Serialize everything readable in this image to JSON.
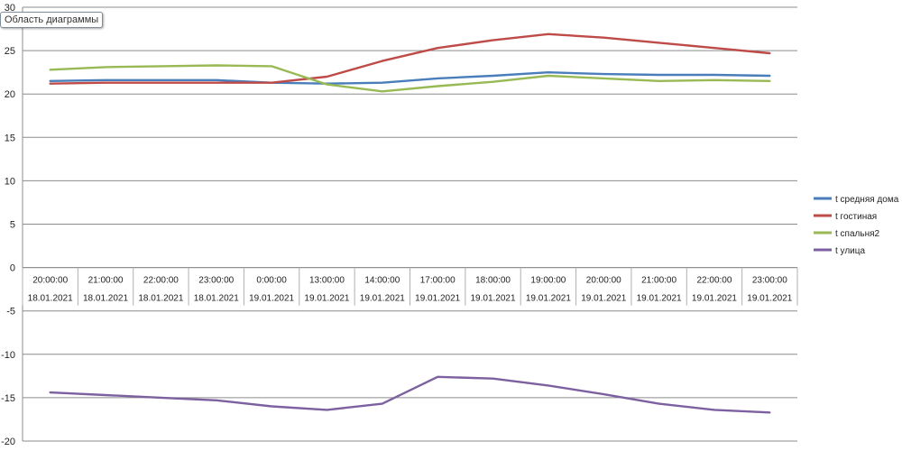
{
  "chart_data": {
    "type": "line",
    "title": "",
    "xlabel": "",
    "ylabel": "",
    "ylim": [
      -20,
      30
    ],
    "y_ticks": [
      30,
      25,
      20,
      15,
      10,
      5,
      0,
      -5,
      -10,
      -15,
      -20
    ],
    "grid": true,
    "legend_position": "right",
    "categories": [
      {
        "time": "20:00:00",
        "date": "18.01.2021"
      },
      {
        "time": "21:00:00",
        "date": "18.01.2021"
      },
      {
        "time": "22:00:00",
        "date": "18.01.2021"
      },
      {
        "time": "23:00:00",
        "date": "18.01.2021"
      },
      {
        "time": "0:00:00",
        "date": "19.01.2021"
      },
      {
        "time": "13:00:00",
        "date": "19.01.2021"
      },
      {
        "time": "14:00:00",
        "date": "19.01.2021"
      },
      {
        "time": "17:00:00",
        "date": "19.01.2021"
      },
      {
        "time": "18:00:00",
        "date": "19.01.2021"
      },
      {
        "time": "19:00:00",
        "date": "19.01.2021"
      },
      {
        "time": "20:00:00",
        "date": "19.01.2021"
      },
      {
        "time": "21:00:00",
        "date": "19.01.2021"
      },
      {
        "time": "22:00:00",
        "date": "19.01.2021"
      },
      {
        "time": "23:00:00",
        "date": "19.01.2021"
      }
    ],
    "series": [
      {
        "name": "t средняя  дома",
        "color": "#4a7ebb",
        "values": [
          21.5,
          21.6,
          21.6,
          21.6,
          21.3,
          21.2,
          21.3,
          21.8,
          22.1,
          22.5,
          22.3,
          22.2,
          22.2,
          22.1
        ]
      },
      {
        "name": "t гостиная",
        "color": "#be4b48",
        "values": [
          21.2,
          21.3,
          21.3,
          21.3,
          21.3,
          22.0,
          23.8,
          25.3,
          26.2,
          26.9,
          26.5,
          25.9,
          25.3,
          24.7
        ]
      },
      {
        "name": "t спальня2",
        "color": "#98b954",
        "values": [
          22.8,
          23.1,
          23.2,
          23.3,
          23.2,
          21.1,
          20.3,
          20.9,
          21.4,
          22.1,
          21.8,
          21.5,
          21.6,
          21.5
        ]
      },
      {
        "name": "t улица",
        "color": "#7d60a0",
        "values": [
          -14.4,
          -14.7,
          -15.0,
          -15.3,
          -16.0,
          -16.4,
          -15.7,
          -12.6,
          -12.8,
          -13.6,
          -14.6,
          -15.7,
          -16.4,
          -16.7
        ]
      }
    ]
  },
  "tooltip": {
    "text": "Область диаграммы"
  }
}
